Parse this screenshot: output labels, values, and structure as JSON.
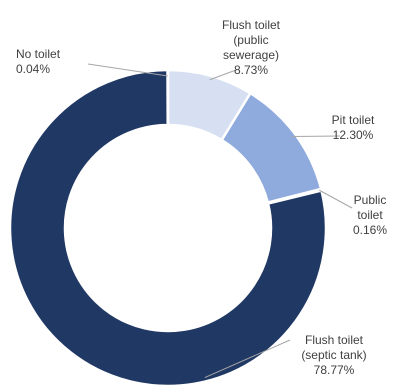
{
  "chart_data": {
    "type": "pie",
    "variant": "donut",
    "title": "",
    "slices": [
      {
        "label": "Flush toilet (public sewerage)",
        "value": 8.73,
        "value_label": "8.73%",
        "color": "#d6e0f2"
      },
      {
        "label": "Pit toilet",
        "value": 12.3,
        "value_label": "12.30%",
        "color": "#8faadc"
      },
      {
        "label": "Public toilet",
        "value": 0.16,
        "value_label": "0.16%",
        "color": "#2f4f8f"
      },
      {
        "label": "Flush toilet (septic tank)",
        "value": 78.77,
        "value_label": "78.77%",
        "color": "#203864"
      },
      {
        "label": "No toilet",
        "value": 0.04,
        "value_label": "0.04%",
        "color": "#7f7f7f"
      }
    ],
    "labels": {
      "public_sewerage": [
        "Flush toilet",
        "(public",
        "sewerage)",
        "8.73%"
      ],
      "pit": [
        "Pit toilet",
        "12.30%"
      ],
      "public_toilet": [
        "Public",
        "toilet",
        "0.16%"
      ],
      "septic": [
        "Flush toilet",
        "(septic tank)",
        "78.77%"
      ],
      "no_toilet": [
        "No toilet",
        "0.04%"
      ]
    },
    "legend": "none"
  }
}
